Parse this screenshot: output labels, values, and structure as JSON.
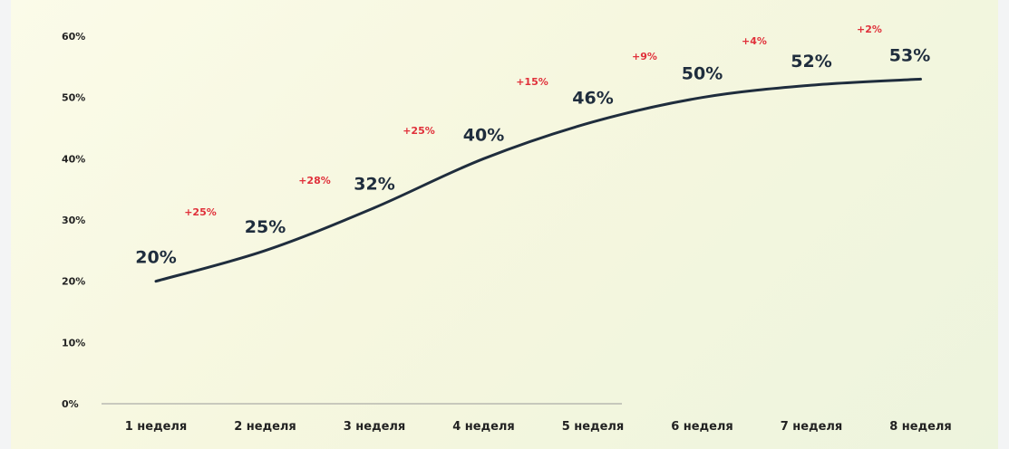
{
  "chart_data": {
    "type": "line",
    "categories": [
      "1 неделя",
      "2 неделя",
      "3 неделя",
      "4 неделя",
      "5 неделя",
      "6 неделя",
      "7 неделя",
      "8 неделя"
    ],
    "values": [
      20,
      25,
      32,
      40,
      46,
      50,
      52,
      53
    ],
    "value_labels": [
      "20%",
      "25%",
      "32%",
      "40%",
      "46%",
      "50%",
      "52%",
      "53%"
    ],
    "growth_labels": [
      "+25%",
      "+28%",
      "+25%",
      "+15%",
      "+9%",
      "+4%",
      "+2%"
    ],
    "y_ticks": [
      0,
      10,
      20,
      30,
      40,
      50,
      60
    ],
    "y_tick_labels": [
      "0%",
      "10%",
      "20%",
      "30%",
      "40%",
      "50%",
      "60%"
    ],
    "ylim": [
      0,
      60
    ],
    "grid": false,
    "legend": "none",
    "line_color": "#1f2d3d",
    "growth_color": "#e0303a",
    "axis_color": "#9a9a9a"
  }
}
